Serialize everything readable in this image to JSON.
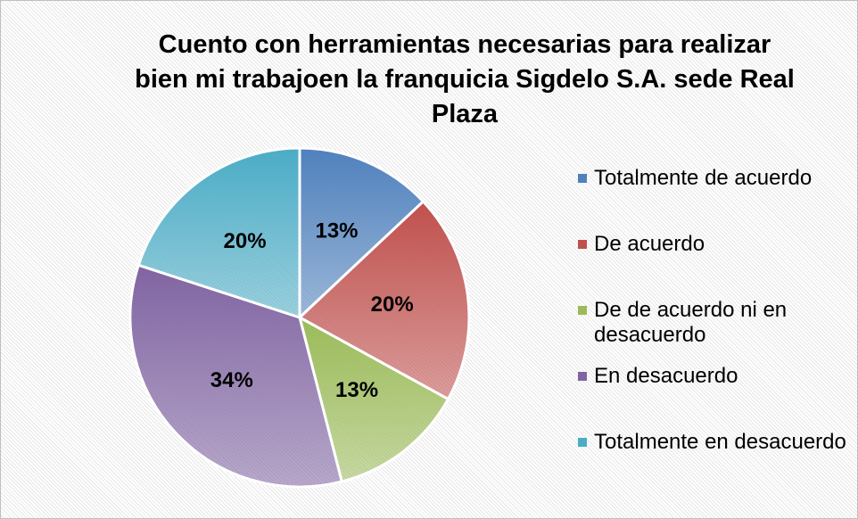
{
  "chart_data": {
    "type": "pie",
    "title": "Cuento con herramientas necesarias para realizar bien mi trabajoen la franquicia Sigdelo S.A. sede Real Plaza",
    "categories": [
      "Totalmente de acuerdo",
      "De acuerdo",
      "De de acuerdo ni en desacuerdo",
      "En desacuerdo",
      "Totalmente en desacuerdo"
    ],
    "values": [
      13,
      20,
      13,
      34,
      20
    ],
    "value_labels": [
      "13%",
      "20%",
      "13%",
      "34%",
      "20%"
    ],
    "colors": [
      "#4f81bd",
      "#c0504d",
      "#9bbb59",
      "#8064a2",
      "#4bacc6"
    ],
    "legend": "right"
  }
}
